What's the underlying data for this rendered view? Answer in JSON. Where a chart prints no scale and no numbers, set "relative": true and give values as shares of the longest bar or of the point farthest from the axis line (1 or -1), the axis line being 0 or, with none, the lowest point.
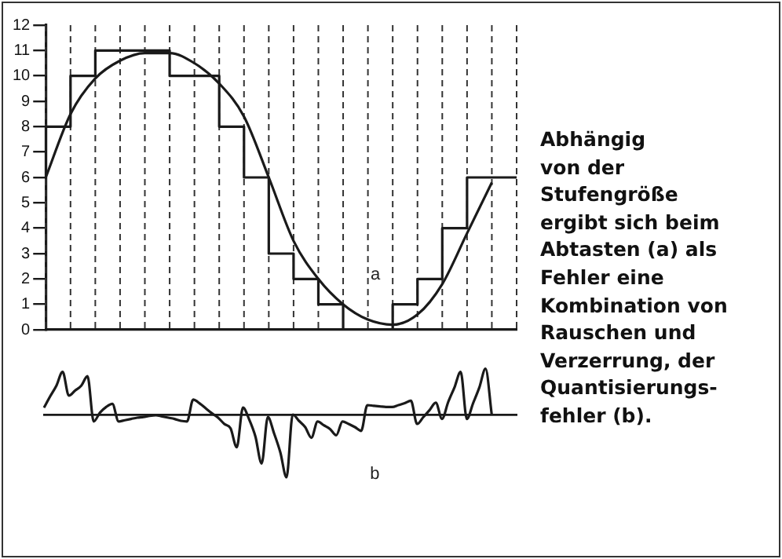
{
  "chart_data": [
    {
      "type": "line",
      "tick_labels": "y",
      "grid": "x",
      "ylim": [
        0,
        12
      ],
      "categories": [
        null,
        null,
        null,
        null,
        null,
        null,
        null,
        null,
        null,
        null,
        null,
        null,
        null,
        null,
        null,
        null,
        null,
        null,
        null,
        null
      ],
      "yticks": [
        0,
        1,
        2,
        3,
        4,
        5,
        6,
        7,
        8,
        9,
        10,
        11,
        12
      ],
      "marker": "none",
      "series": [
        {
          "type": "step",
          "color": "#1a1a1a",
          "values": [
            6,
            8,
            10,
            11,
            11,
            11,
            10,
            10,
            8,
            6,
            3,
            2,
            1,
            0,
            0,
            1,
            2,
            4,
            6,
            6
          ]
        },
        {
          "type": "line",
          "color": "#1a1a1a",
          "values": [
            6.0,
            8.5,
            9.9,
            10.6,
            10.9,
            10.9,
            10.5,
            9.7,
            8.4,
            6.0,
            3.5,
            2.0,
            1.0,
            0.4,
            0.2,
            0.6,
            1.8,
            3.8,
            5.8,
            null
          ]
        }
      ],
      "annotations": [
        "a",
        "Abhängig\nvon der\nStufengröße\nergibt sich beim\nAbtasten (a) als\nFehler eine\nKombination von\nRauschen und\nVerzerrung, der\nQuantisierungs-\nfehler (b)."
      ]
    },
    {
      "type": "line",
      "relative": true,
      "tick_labels": false,
      "marker": "none",
      "categories": [
        null,
        null,
        null,
        null,
        null,
        null,
        null,
        null,
        null,
        null,
        null,
        null,
        null,
        null,
        null,
        null,
        null,
        null,
        null,
        null,
        null,
        null,
        null,
        null,
        null,
        null,
        null,
        null,
        null,
        null,
        null,
        null,
        null,
        null,
        null,
        null,
        null,
        null,
        null,
        null,
        null,
        null,
        null,
        null,
        null,
        null,
        null,
        null,
        null,
        null,
        null,
        null,
        null,
        null,
        null,
        null,
        null,
        null,
        null,
        null,
        null,
        null,
        null,
        null,
        null,
        null,
        null,
        null,
        null,
        null,
        null,
        null,
        null,
        null,
        null,
        null,
        null
      ],
      "series": [
        {
          "type": "line",
          "color": "#1a1a1a",
          "values": [
            0.11,
            0.29,
            0.46,
            0.68,
            0.3,
            0.38,
            0.46,
            0.61,
            -0.11,
            0.03,
            0.12,
            0.17,
            -0.11,
            -0.09,
            -0.07,
            -0.05,
            -0.04,
            -0.02,
            -0.01,
            -0.03,
            -0.05,
            -0.07,
            -0.1,
            -0.11,
            0.24,
            0.18,
            0.1,
            0.02,
            -0.05,
            -0.15,
            -0.22,
            -0.52,
            0.11,
            -0.08,
            -0.35,
            -0.78,
            -0.04,
            -0.3,
            -0.6,
            -1,
            0,
            -0.1,
            -0.2,
            -0.37,
            -0.11,
            -0.17,
            -0.23,
            -0.33,
            -0.11,
            -0.15,
            -0.2,
            -0.26,
            0.15,
            0.14,
            0.13,
            0.12,
            0.12,
            0.15,
            0.18,
            0.22,
            -0.15,
            -0.04,
            0.07,
            0.19,
            -0.07,
            0.2,
            0.43,
            0.68,
            -0.07,
            0.18,
            0.43,
            0.73,
            0,
            null,
            null,
            null,
            null
          ]
        }
      ],
      "annotations": [
        "b"
      ]
    }
  ]
}
